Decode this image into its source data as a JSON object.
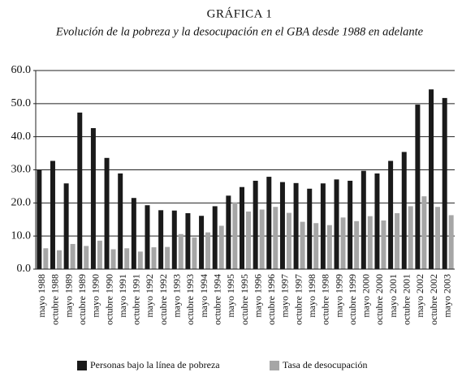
{
  "chart_data": {
    "type": "bar",
    "title": "GRÁFICA 1",
    "subtitle": "Evolución de la pobreza y la desocupación en el GBA desde 1988 en adelante",
    "categories": [
      "mayo 1988",
      "octubre 1988",
      "mayo 1989",
      "octubre 1989",
      "mayo 1990",
      "octubre 1990",
      "mayo 1991",
      "octubre 1991",
      "mayo 1992",
      "octubre 1992",
      "mayo 1993",
      "octubre 1993",
      "mayo 1994",
      "octubre 1994",
      "mayo 1995",
      "octubre 1995",
      "mayo 1996",
      "octubre 1996",
      "mayo 1997",
      "octubre 1997",
      "mayo 1998",
      "octubre 1998",
      "mayo 1999",
      "octubre 1999",
      "mayo 2000",
      "octubre 2000",
      "mayo 2001",
      "octubre 2001",
      "mayo 2002",
      "octubre 2002",
      "mayo 2003"
    ],
    "series": [
      {
        "name": "Personas bajo la línea de pobreza",
        "color": "#1a1a1a",
        "values": [
          29.9,
          32.7,
          25.9,
          47.3,
          42.6,
          33.6,
          28.9,
          21.5,
          19.3,
          17.8,
          17.7,
          16.9,
          16.1,
          19.0,
          22.2,
          24.8,
          26.7,
          27.9,
          26.3,
          26.0,
          24.3,
          25.9,
          27.1,
          26.7,
          29.7,
          28.9,
          32.7,
          35.4,
          49.7,
          54.3,
          51.7
        ]
      },
      {
        "name": "Tasa de desocupación",
        "color": "#a6a6a6",
        "values": [
          6.3,
          5.7,
          7.6,
          7.0,
          8.6,
          6.0,
          6.3,
          5.3,
          6.6,
          6.7,
          10.6,
          9.6,
          11.1,
          13.1,
          20.2,
          17.4,
          18.0,
          18.8,
          17.0,
          14.3,
          13.9,
          13.3,
          15.6,
          14.5,
          16.0,
          14.7,
          16.9,
          19.0,
          22.0,
          18.8,
          16.3
        ]
      }
    ],
    "ylim": [
      0,
      60
    ],
    "yticks": [
      {
        "value": 0,
        "label": "0.0"
      },
      {
        "value": 10,
        "label": "10.0"
      },
      {
        "value": 20,
        "label": "20.0"
      },
      {
        "value": 30,
        "label": "30.0"
      },
      {
        "value": 40,
        "label": "40.0"
      },
      {
        "value": 50,
        "label": "50.0"
      },
      {
        "value": 60,
        "label": "60.0"
      }
    ],
    "grid": true
  }
}
